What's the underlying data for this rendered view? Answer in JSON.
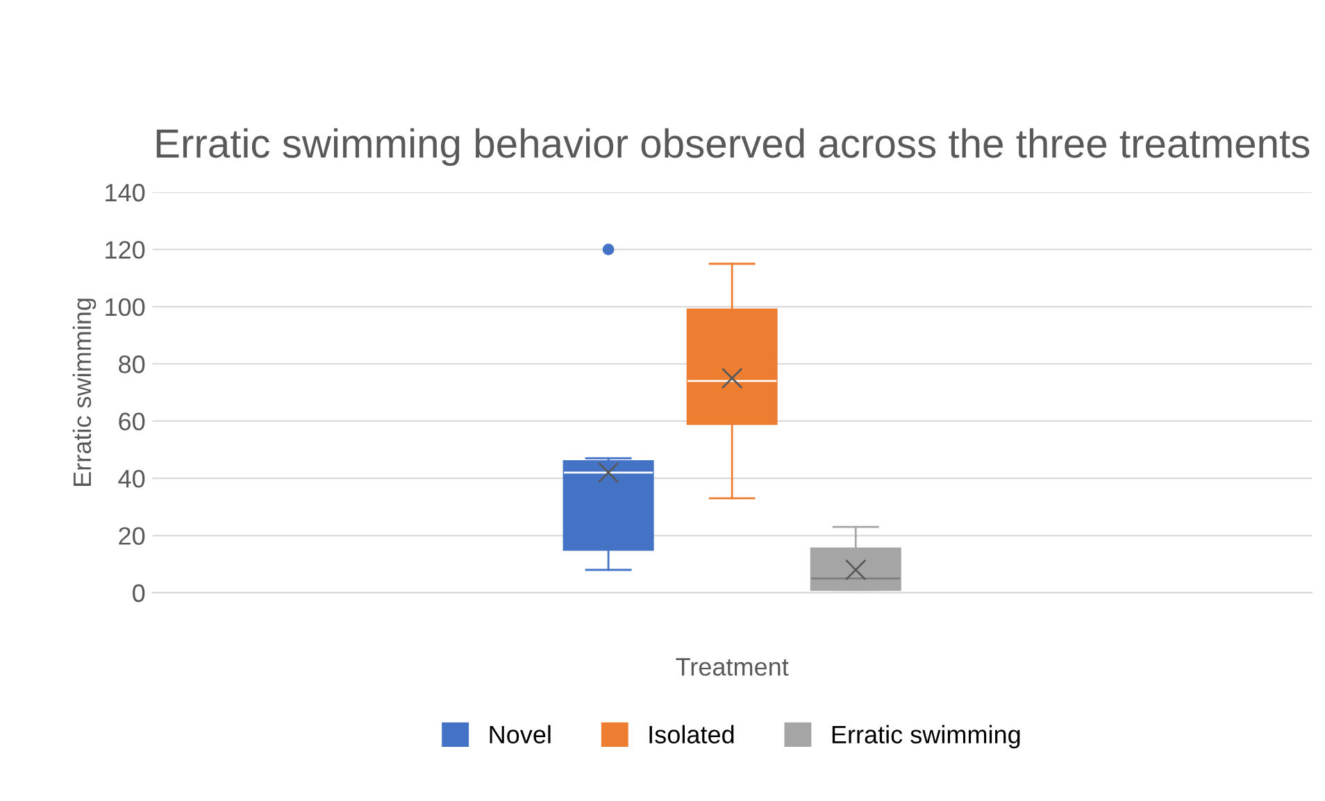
{
  "chart_data": {
    "type": "box",
    "title": "Erratic swimming behavior observed across the three treatments",
    "xlabel": "Treatment",
    "ylabel": "Erratic swimming",
    "categories": [
      null
    ],
    "series": [
      {
        "name": "Novel",
        "color": "#4472c4",
        "boxes": [
          {
            "low": 8,
            "q1": 15,
            "median": 42,
            "q3": 46,
            "high": 47,
            "mean": 42,
            "outliers": [
              120
            ]
          }
        ]
      },
      {
        "name": "Isolated",
        "color": "#ed7d31",
        "boxes": [
          {
            "low": 33,
            "q1": 59,
            "median": 74,
            "q3": 99,
            "high": 115,
            "mean": 75
          }
        ]
      },
      {
        "name": "Erratic swimming",
        "color": "#a5a5a5",
        "boxes": [
          {
            "low": 1,
            "q1": 1,
            "median": 5,
            "q3": 15.5,
            "high": 23,
            "mean": 8
          }
        ]
      }
    ],
    "ylim": [
      0,
      140
    ],
    "yticks": [
      0,
      20,
      40,
      60,
      80,
      100,
      120,
      140
    ],
    "grid": "y",
    "legend": "bottom"
  }
}
